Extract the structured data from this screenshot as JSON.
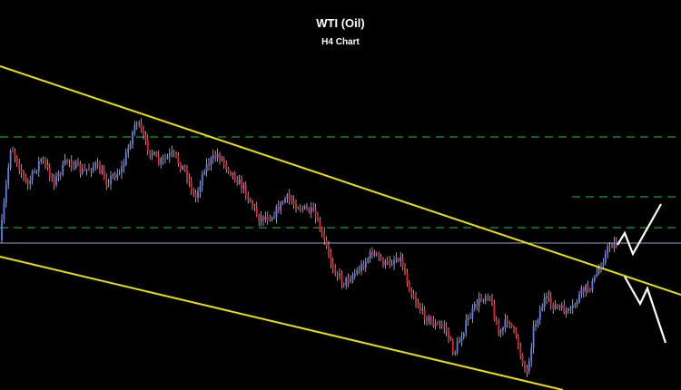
{
  "chart_data": {
    "type": "candlestick",
    "title": "WTI (Oil)",
    "subtitle": "H4 Chart",
    "xlabel": "",
    "ylabel": "",
    "grid": false,
    "colors": {
      "background": "#000000",
      "bull": "#5b7ff0",
      "bear": "#e8202a",
      "wick": "#ffffff",
      "channel": "#e8e000",
      "levels": "#1e9a3a",
      "pivot": "#9aa0c8",
      "projection": "#ffffff"
    },
    "path": [
      [
        0,
        265
      ],
      [
        12,
        160
      ],
      [
        30,
        205
      ],
      [
        45,
        175
      ],
      [
        60,
        200
      ],
      [
        75,
        175
      ],
      [
        90,
        190
      ],
      [
        105,
        182
      ],
      [
        118,
        200
      ],
      [
        135,
        185
      ],
      [
        150,
        132
      ],
      [
        160,
        158
      ],
      [
        175,
        180
      ],
      [
        190,
        170
      ],
      [
        205,
        190
      ],
      [
        215,
        220
      ],
      [
        225,
        185
      ],
      [
        240,
        170
      ],
      [
        255,
        190
      ],
      [
        270,
        210
      ],
      [
        285,
        240
      ],
      [
        300,
        238
      ],
      [
        315,
        218
      ],
      [
        330,
        228
      ],
      [
        345,
        235
      ],
      [
        355,
        260
      ],
      [
        365,
        290
      ],
      [
        378,
        312
      ],
      [
        395,
        298
      ],
      [
        410,
        278
      ],
      [
        425,
        292
      ],
      [
        440,
        282
      ],
      [
        452,
        320
      ],
      [
        465,
        345
      ],
      [
        478,
        358
      ],
      [
        490,
        360
      ],
      [
        500,
        390
      ],
      [
        512,
        360
      ],
      [
        525,
        335
      ],
      [
        538,
        322
      ],
      [
        550,
        370
      ],
      [
        560,
        350
      ],
      [
        572,
        385
      ],
      [
        580,
        413
      ],
      [
        588,
        360
      ],
      [
        600,
        330
      ],
      [
        615,
        340
      ],
      [
        628,
        345
      ],
      [
        640,
        322
      ],
      [
        652,
        314
      ],
      [
        662,
        290
      ],
      [
        672,
        270
      ],
      [
        680,
        268
      ]
    ],
    "channel_lines": [
      {
        "name": "upper",
        "x": [
          0,
          750
        ],
        "y": [
          73,
          325
        ]
      },
      {
        "name": "lower",
        "x": [
          0,
          620
        ],
        "y": [
          283,
          430
        ]
      }
    ],
    "horizontal_levels": [
      {
        "style": "dashed",
        "y": 151,
        "x": [
          0,
          750
        ]
      },
      {
        "style": "dashed",
        "y": 217,
        "x": [
          630,
          750
        ]
      },
      {
        "style": "dashed",
        "y": 251,
        "x": [
          0,
          750
        ]
      },
      {
        "style": "solid",
        "y": 268,
        "x": [
          0,
          750
        ]
      }
    ],
    "projections": [
      {
        "name": "bullish-scenario",
        "points": [
          [
            680,
            270
          ],
          [
            688,
            257
          ],
          [
            697,
            280
          ],
          [
            728,
            225
          ]
        ]
      },
      {
        "name": "bearish-scenario",
        "points": [
          [
            688,
            305
          ],
          [
            705,
            335
          ],
          [
            713,
            318
          ],
          [
            733,
            378
          ]
        ]
      }
    ]
  }
}
